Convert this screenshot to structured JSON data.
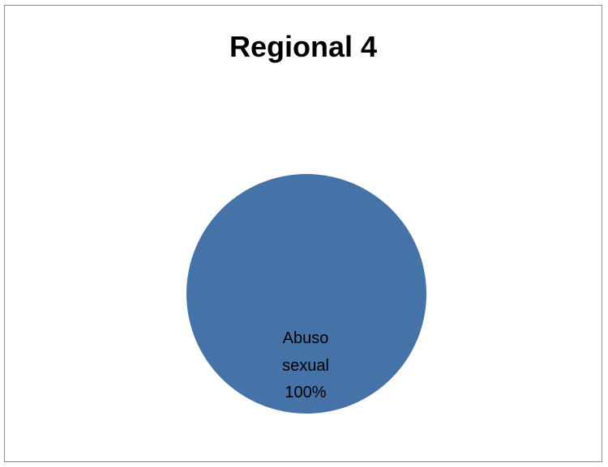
{
  "chart_data": {
    "type": "pie",
    "title": "Regional 4",
    "categories": [
      "Abuso sexual"
    ],
    "values": [
      100
    ],
    "slice_labels": [
      {
        "category_line_1": "Abuso",
        "category_line_2": "sexual",
        "percent": "100%"
      }
    ],
    "colors": [
      "#4572A7"
    ],
    "legend": "none"
  }
}
